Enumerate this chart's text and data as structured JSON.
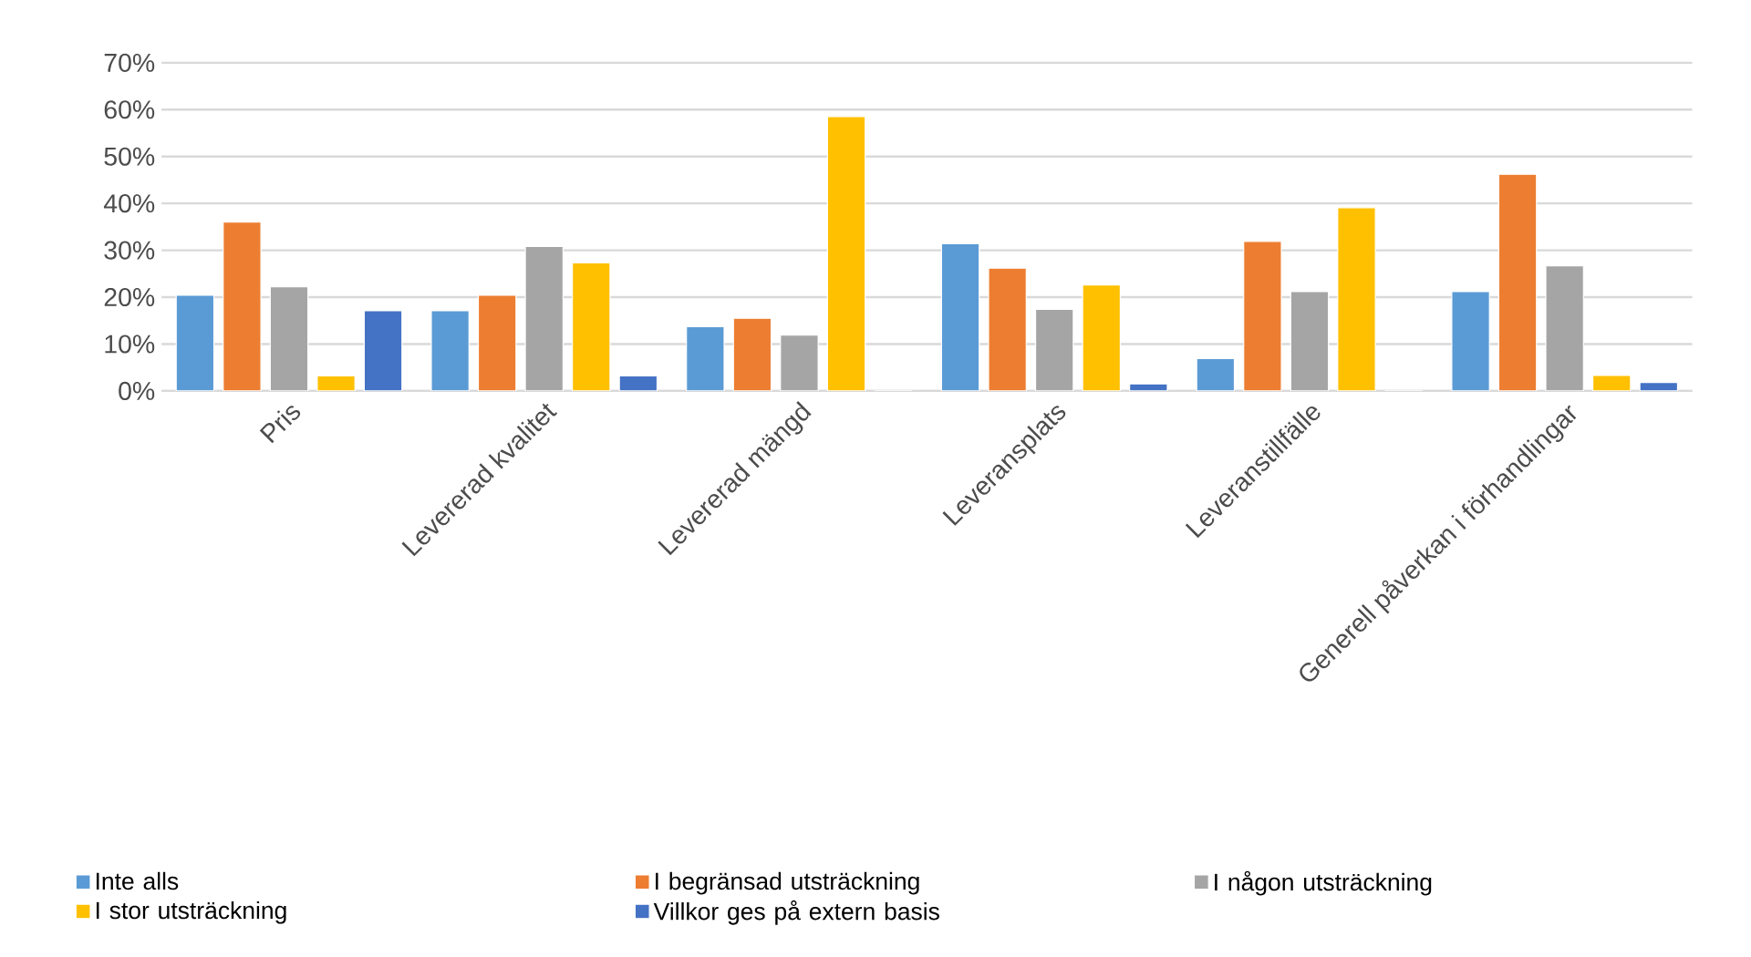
{
  "chart_data": {
    "type": "bar",
    "categories": [
      "Pris",
      "Levererad kvalitet",
      "Levererad mängd",
      "Leveransplats",
      "Leveranstillfälle",
      "Generell påverkan i förhandlingar"
    ],
    "series": [
      {
        "name": "Inte alls",
        "color": "#5b9bd5",
        "values": [
          20.4,
          17.1,
          13.7,
          31.4,
          6.9,
          21.2
        ]
      },
      {
        "name": "I begränsad utsträckning",
        "color": "#ed7d31",
        "values": [
          36.0,
          20.4,
          15.5,
          26.2,
          31.9,
          46.2
        ]
      },
      {
        "name": "I någon utsträckning",
        "color": "#a5a5a5",
        "values": [
          22.2,
          30.8,
          11.9,
          17.4,
          21.2,
          26.7
        ]
      },
      {
        "name": "I stor utsträckning",
        "color": "#ffc000",
        "values": [
          3.2,
          27.3,
          58.5,
          22.6,
          39.1,
          3.3
        ]
      },
      {
        "name": "Villkor ges på extern basis",
        "color": "#4472c4",
        "values": [
          17.1,
          3.2,
          0,
          1.5,
          0,
          1.8
        ]
      }
    ],
    "ylim": [
      0,
      70
    ],
    "yticks": [
      {
        "value": 0,
        "label": "0%"
      },
      {
        "value": 10,
        "label": "10%"
      },
      {
        "value": 20,
        "label": "20%"
      },
      {
        "value": 30,
        "label": "30%"
      },
      {
        "value": 40,
        "label": "40%"
      },
      {
        "value": 50,
        "label": "50%"
      },
      {
        "value": 60,
        "label": "60%"
      },
      {
        "value": 70,
        "label": "70%"
      }
    ],
    "grid": "y",
    "legend": "bottom"
  }
}
